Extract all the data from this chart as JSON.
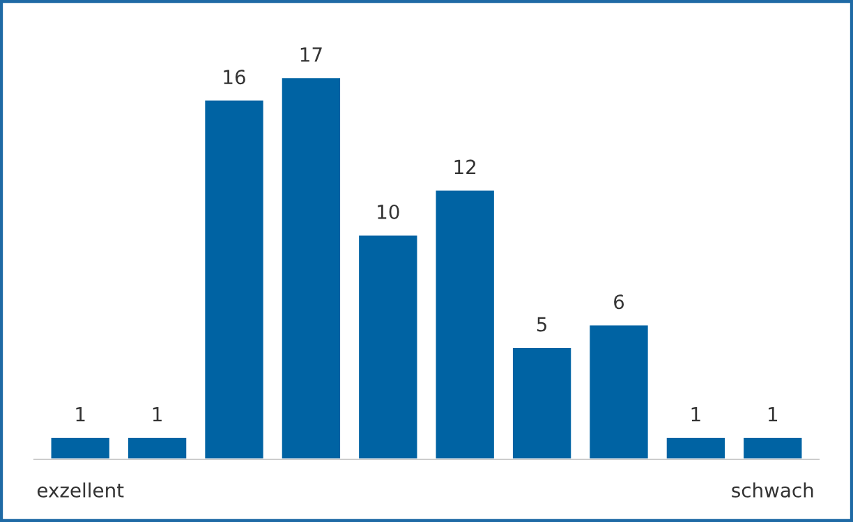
{
  "chart_data": {
    "type": "bar",
    "categories": [
      "exzellent",
      null,
      null,
      null,
      null,
      null,
      null,
      null,
      null,
      "schwach"
    ],
    "values": [
      1,
      1,
      16,
      17,
      10,
      12,
      5,
      6,
      1,
      1
    ],
    "color": "#0063a3",
    "data_labels": true,
    "grid": false,
    "legend": false
  }
}
